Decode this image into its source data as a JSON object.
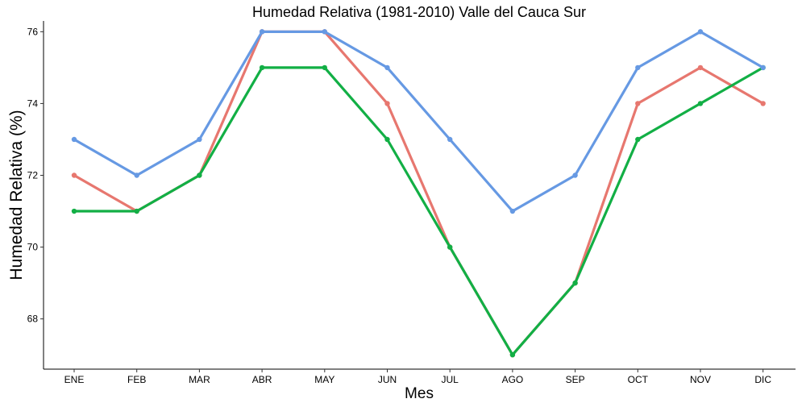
{
  "chart_data": {
    "type": "line",
    "title": "Humedad Relativa (1981-2010)  Valle del Cauca Sur",
    "xlabel": "Mes",
    "ylabel": "Humedad Relativa   (%)",
    "categories": [
      "ENE",
      "FEB",
      "MAR",
      "ABR",
      "MAY",
      "JUN",
      "JUL",
      "AGO",
      "SEP",
      "OCT",
      "NOV",
      "DIC"
    ],
    "yticks": [
      "68",
      "70",
      "72",
      "74",
      "76"
    ],
    "ylim": [
      66.6,
      76.3
    ],
    "grid": false,
    "legend": "none",
    "series": [
      {
        "color": "#E7776F",
        "values": [
          72,
          71,
          72,
          76,
          76,
          74,
          70,
          67,
          69,
          74,
          75,
          74
        ]
      },
      {
        "color": "#12AF45",
        "values": [
          71,
          71,
          72,
          75,
          75,
          73,
          70,
          67,
          69,
          73,
          74,
          75
        ]
      },
      {
        "color": "#6699E3",
        "values": [
          73,
          72,
          73,
          76,
          76,
          75,
          73,
          71,
          72,
          75,
          76,
          75
        ]
      }
    ]
  }
}
